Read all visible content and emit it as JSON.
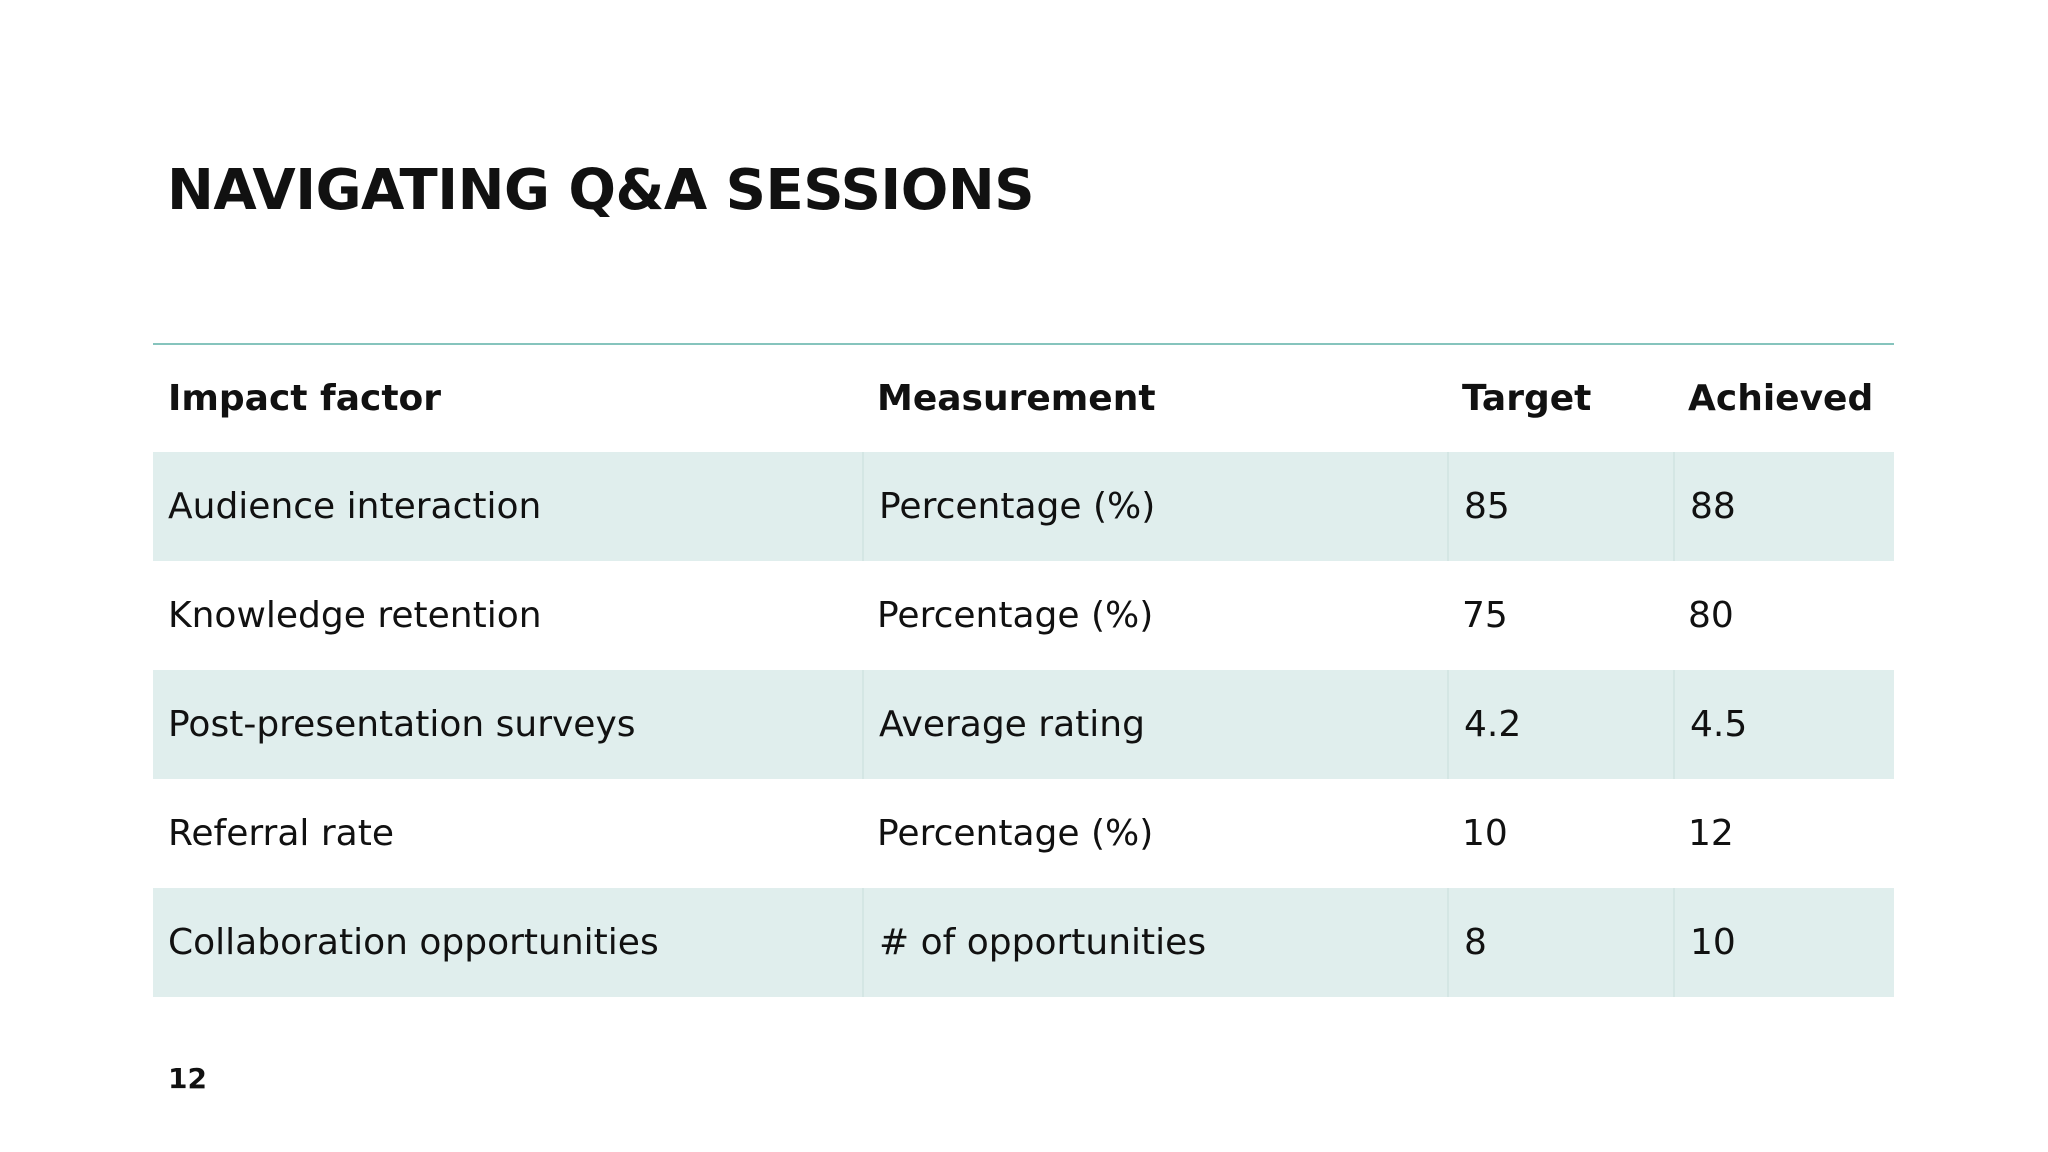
{
  "header": {
    "title": "NAVIGATING Q&A SESSIONS"
  },
  "table": {
    "columns": [
      "Impact factor",
      "Measurement",
      "Target",
      "Achieved"
    ],
    "rows": [
      [
        "Audience interaction",
        "Percentage (%)",
        85,
        88
      ],
      [
        "Knowledge retention",
        "Percentage (%)",
        75,
        80
      ],
      [
        "Post-presentation surveys",
        "Average rating",
        4.2,
        4.5
      ],
      [
        "Referral rate",
        "Percentage (%)",
        10,
        12
      ],
      [
        "Collaboration opportunities",
        "# of opportunities",
        8,
        10
      ]
    ]
  },
  "footer": {
    "page_number": "12"
  }
}
